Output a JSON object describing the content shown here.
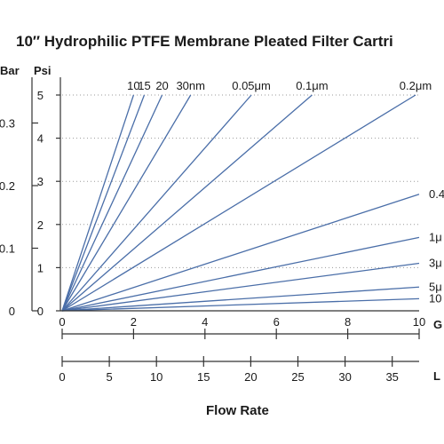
{
  "chart_data": {
    "type": "line",
    "title": "10″ Hydrophilic PTFE Membrane Pleated Filter Cartri",
    "xlabel": "Flow Rate",
    "ylabel": "",
    "pressure_units": {
      "bar": "Bar",
      "psi": "Psi"
    },
    "flow_units": {
      "gpm": "G",
      "lpm": "L"
    },
    "psi_ticks": [
      "0",
      "1",
      "2",
      "3",
      "4",
      "5"
    ],
    "bar_ticks": [
      "0",
      "0.1",
      "0.2",
      "0.3"
    ],
    "gpm_ticks": [
      "0",
      "2",
      "4",
      "6",
      "8",
      "10"
    ],
    "lpm_ticks": [
      "0",
      "5",
      "10",
      "15",
      "20",
      "25",
      "30",
      "35"
    ],
    "xlim": [
      0,
      10
    ],
    "ylim": [
      0,
      5
    ],
    "grid": "dotted horizontal lines at each Psi tick",
    "line_color": "#4a6ea8",
    "series": [
      {
        "name": "10",
        "x": [
          0,
          2.0
        ],
        "y": [
          0,
          5.0
        ]
      },
      {
        "name": "15",
        "x": [
          0,
          2.3
        ],
        "y": [
          0,
          5.0
        ]
      },
      {
        "name": "20",
        "x": [
          0,
          2.8
        ],
        "y": [
          0,
          5.0
        ]
      },
      {
        "name": "30nm",
        "x": [
          0,
          3.6
        ],
        "y": [
          0,
          5.0
        ]
      },
      {
        "name": "0.05μm",
        "x": [
          0,
          5.3
        ],
        "y": [
          0,
          5.0
        ]
      },
      {
        "name": "0.1μm",
        "x": [
          0,
          7.0
        ],
        "y": [
          0,
          5.0
        ]
      },
      {
        "name": "0.2μm",
        "x": [
          0,
          9.9
        ],
        "y": [
          0,
          5.0
        ]
      },
      {
        "name": "0.4",
        "x": [
          0,
          10.0
        ],
        "y": [
          0,
          2.7
        ]
      },
      {
        "name": "1μ",
        "x": [
          0,
          10.0
        ],
        "y": [
          0,
          1.7
        ]
      },
      {
        "name": "3μ",
        "x": [
          0,
          10.0
        ],
        "y": [
          0,
          1.1
        ]
      },
      {
        "name": "5μ",
        "x": [
          0,
          10.0
        ],
        "y": [
          0,
          0.55
        ]
      },
      {
        "name": "10",
        "x": [
          0,
          10.0
        ],
        "y": [
          0,
          0.28
        ]
      }
    ]
  }
}
